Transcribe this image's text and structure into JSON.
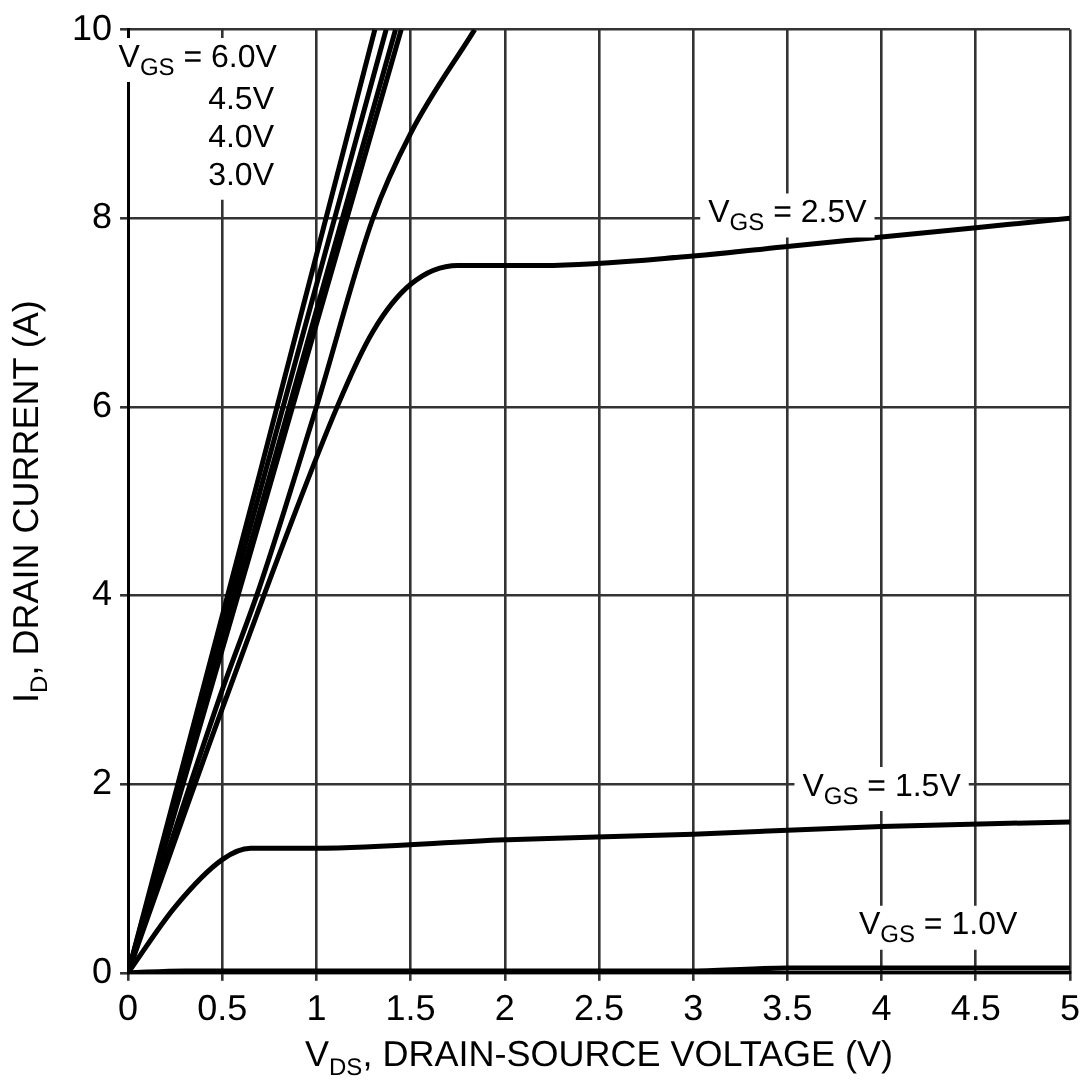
{
  "chart_data": {
    "type": "line",
    "xlabel": "V$_{DS}$, DRAIN-SOURCE VOLTAGE (V)",
    "ylabel": "I$_{D}$, DRAIN CURRENT (A)",
    "xlim": [
      0,
      5
    ],
    "xticks": [
      0,
      0.5,
      1,
      1.5,
      2,
      2.5,
      3,
      3.5,
      4,
      4.5,
      5
    ],
    "ylim": [
      0,
      10
    ],
    "yticks": [
      0,
      2,
      4,
      6,
      8,
      10
    ],
    "grid": true,
    "marker": "none",
    "line_style": "solid",
    "series": [
      {
        "color": "#000000",
        "x": [
          0,
          0.7,
          1.31
        ],
        "values": [
          0,
          5.3,
          10
        ]
      },
      {
        "color": "#000000",
        "x": [
          0,
          0.7,
          1.37
        ],
        "values": [
          0,
          5.1,
          10
        ]
      },
      {
        "color": "#000000",
        "x": [
          0,
          0.7,
          1.42
        ],
        "values": [
          0,
          4.9,
          10
        ]
      },
      {
        "color": "#000000",
        "x": [
          0,
          0.7,
          1.45
        ],
        "values": [
          0,
          4.8,
          10
        ]
      },
      {
        "color": "#000000",
        "x": [
          0,
          0.5,
          0.7,
          1.0,
          1.3,
          1.5,
          1.84
        ],
        "values": [
          0,
          3.0,
          4.1,
          6,
          8,
          8.9,
          10
        ]
      },
      {
        "color": "#000000",
        "x": [
          0,
          0.5,
          1.11,
          1.3,
          1.5,
          1.75,
          2.2,
          3,
          3.5,
          4,
          4.5,
          5
        ],
        "values": [
          0,
          2.8,
          6,
          6.8,
          7.3,
          7.5,
          7.5,
          7.6,
          7.7,
          7.8,
          7.9,
          8.0
        ]
      },
      {
        "color": "#000000",
        "x": [
          0,
          0.25,
          0.5,
          0.65,
          1.0,
          2,
          3,
          4,
          5
        ],
        "values": [
          0,
          0.7,
          1.2,
          1.32,
          1.32,
          1.41,
          1.47,
          1.55,
          1.6
        ]
      },
      {
        "color": "#000000",
        "x": [
          0,
          0.3,
          3,
          3.5,
          5
        ],
        "values": [
          0,
          0.02,
          0.02,
          0.05,
          0.05
        ]
      }
    ],
    "annotations": [
      "V$_{GS}$ = 6.0V",
      "4.5V",
      "4.0V",
      "3.0V",
      "V$_{GS}$ = 2.5V",
      "V$_{GS}$ = 1.5V",
      "V$_{GS}$ = 1.0V"
    ]
  }
}
